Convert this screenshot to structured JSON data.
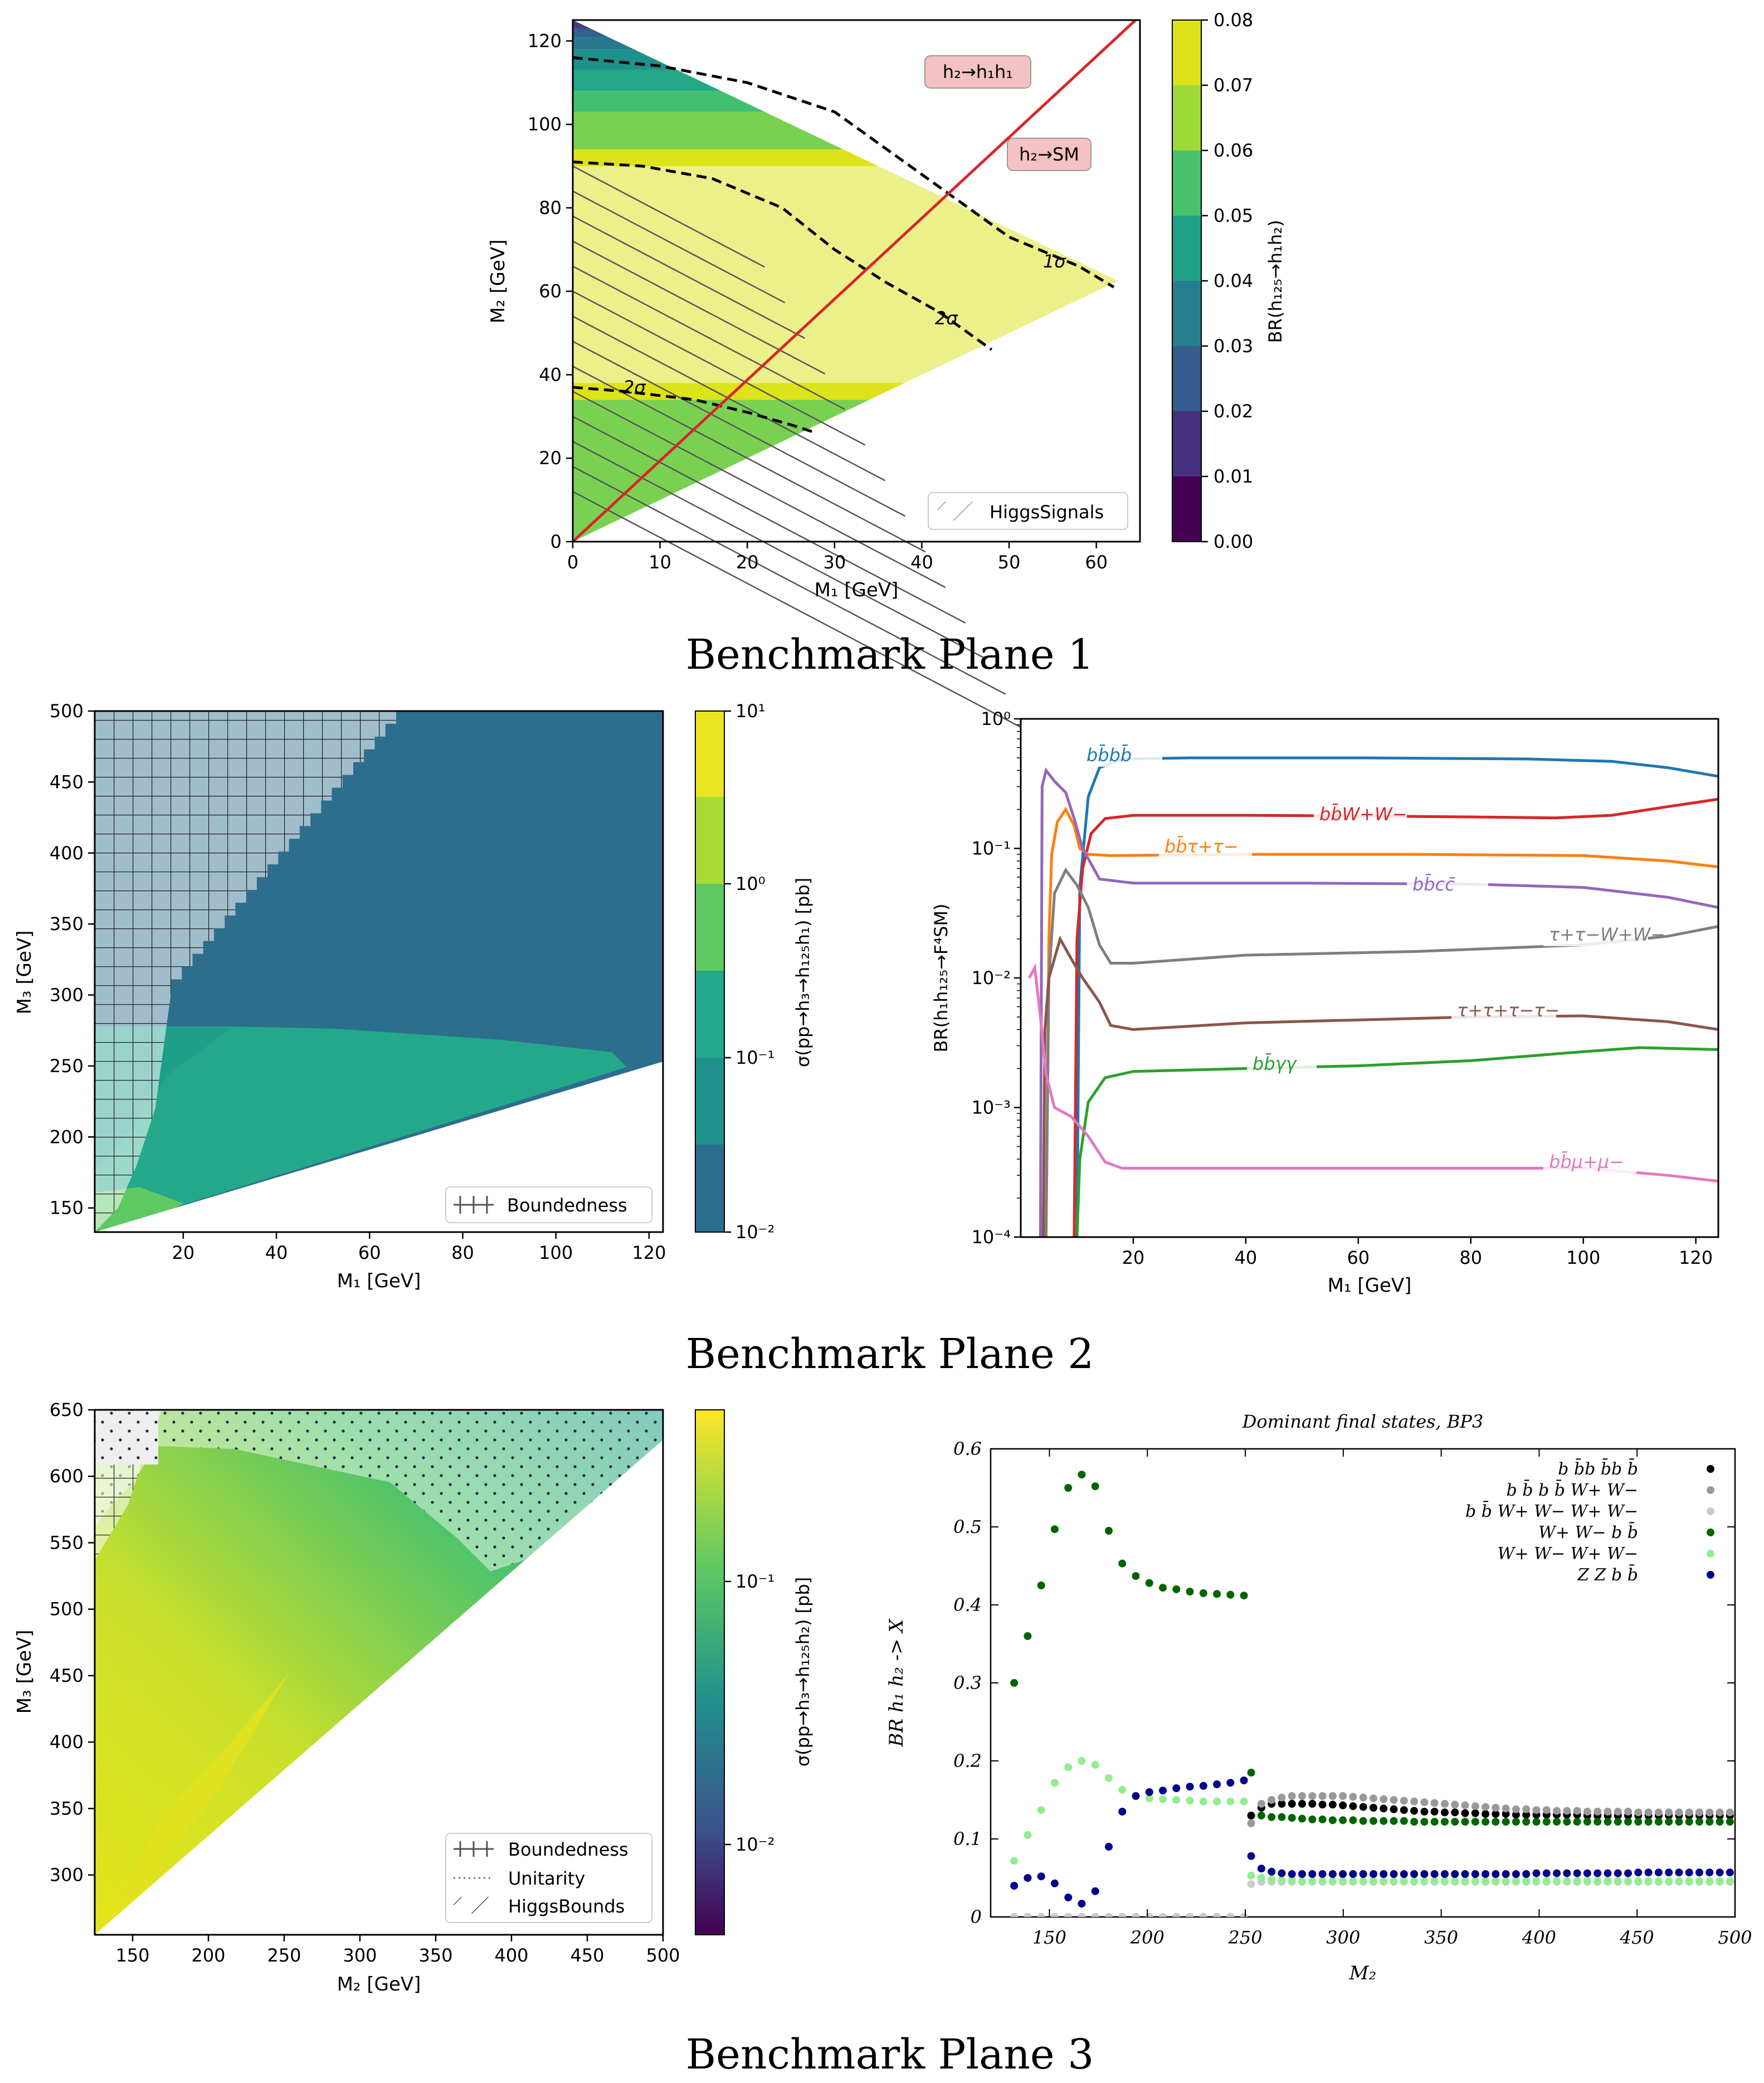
{
  "caption_bp1": "Benchmark Plane 1",
  "caption_bp2": "Benchmark Plane 2",
  "caption_bp3": "Benchmark Plane 3",
  "chart_data": [
    {
      "id": "bp1",
      "type": "heatmap",
      "title": "",
      "xlabel": "M1 [GeV]",
      "ylabel": "M2 [GeV]",
      "xlim": [
        0,
        65
      ],
      "ylim": [
        0,
        125
      ],
      "xticks": [
        0,
        10,
        20,
        30,
        40,
        50,
        60
      ],
      "yticks": [
        0,
        20,
        40,
        60,
        80,
        100,
        120
      ],
      "colorbar_label": "BR(h125 → h1 h2)",
      "colorbar_ticks": [
        "0.00",
        "0.01",
        "0.02",
        "0.03",
        "0.04",
        "0.05",
        "0.06",
        "0.07",
        "0.08"
      ],
      "contour_labels": [
        "1σ",
        "2σ",
        "2σ"
      ],
      "annotations": [
        "h2→h1h1",
        "h2→SM"
      ],
      "legend": [
        "HiggsSignals"
      ]
    },
    {
      "id": "bp2a",
      "type": "heatmap",
      "xlabel": "M1 [GeV]",
      "ylabel": "M3 [GeV]",
      "xlim": [
        1,
        123
      ],
      "ylim": [
        133,
        500
      ],
      "xticks": [
        20,
        40,
        60,
        80,
        100,
        120
      ],
      "yticks": [
        150,
        200,
        250,
        300,
        350,
        400,
        450,
        500
      ],
      "colorbar_label": "σ(pp → h3 → h125 h1) [pb]",
      "colorbar_ticks": [
        "10^1",
        "10^0",
        "10^-1",
        "10^-2"
      ],
      "legend": [
        "Boundedness"
      ]
    },
    {
      "id": "bp2b",
      "type": "line",
      "xlabel": "M1 [GeV]",
      "ylabel": "BR(h1 h125 → F4SM)",
      "xlim": [
        0,
        124
      ],
      "ylim": [
        0.0001,
        1
      ],
      "yscale": "log",
      "xticks": [
        20,
        40,
        60,
        80,
        100,
        120
      ],
      "yticks": [
        "10^0",
        "10^-1",
        "10^-2",
        "10^-3",
        "10^-4"
      ],
      "series": [
        {
          "name": "bb̄bb̄",
          "color": "#1f77b4",
          "points": [
            [
              10,
              0.0001
            ],
            [
              10.5,
              0.05
            ],
            [
              12,
              0.25
            ],
            [
              14,
              0.42
            ],
            [
              18,
              0.49
            ],
            [
              30,
              0.5
            ],
            [
              60,
              0.5
            ],
            [
              90,
              0.49
            ],
            [
              105,
              0.47
            ],
            [
              115,
              0.42
            ],
            [
              124,
              0.36
            ]
          ]
        },
        {
          "name": "bb̄W+W−",
          "color": "#d62728",
          "points": [
            [
              9.5,
              0.0001
            ],
            [
              10,
              0.02
            ],
            [
              11,
              0.07
            ],
            [
              12.5,
              0.13
            ],
            [
              15,
              0.17
            ],
            [
              20,
              0.18
            ],
            [
              40,
              0.18
            ],
            [
              60,
              0.178
            ],
            [
              80,
              0.175
            ],
            [
              95,
              0.172
            ],
            [
              105,
              0.18
            ],
            [
              115,
              0.21
            ],
            [
              124,
              0.24
            ]
          ]
        },
        {
          "name": "bb̄τ+τ−",
          "color": "#ff7f0e",
          "points": [
            [
              4.5,
              0.0001
            ],
            [
              5,
              0.02
            ],
            [
              5.5,
              0.09
            ],
            [
              6.5,
              0.16
            ],
            [
              8,
              0.2
            ],
            [
              9.5,
              0.15
            ],
            [
              10.5,
              0.1
            ],
            [
              12,
              0.09
            ],
            [
              16,
              0.088
            ],
            [
              40,
              0.09
            ],
            [
              70,
              0.09
            ],
            [
              100,
              0.088
            ],
            [
              115,
              0.08
            ],
            [
              124,
              0.072
            ]
          ]
        },
        {
          "name": "bb̄cc̄",
          "color": "#9467bd",
          "points": [
            [
              3.5,
              0.0001
            ],
            [
              3.8,
              0.3
            ],
            [
              4.5,
              0.4
            ],
            [
              6,
              0.33
            ],
            [
              8,
              0.27
            ],
            [
              9.5,
              0.17
            ],
            [
              11,
              0.1
            ],
            [
              14,
              0.058
            ],
            [
              20,
              0.054
            ],
            [
              50,
              0.054
            ],
            [
              80,
              0.053
            ],
            [
              100,
              0.05
            ],
            [
              115,
              0.042
            ],
            [
              124,
              0.035
            ]
          ]
        },
        {
          "name": "τ+τ−W+W−",
          "color": "#7f7f7f",
          "points": [
            [
              4.5,
              0.0001
            ],
            [
              5,
              0.01
            ],
            [
              6,
              0.045
            ],
            [
              8,
              0.068
            ],
            [
              10,
              0.052
            ],
            [
              12,
              0.035
            ],
            [
              14,
              0.018
            ],
            [
              16,
              0.013
            ],
            [
              20,
              0.013
            ],
            [
              40,
              0.015
            ],
            [
              70,
              0.016
            ],
            [
              100,
              0.018
            ],
            [
              115,
              0.021
            ],
            [
              124,
              0.025
            ]
          ]
        },
        {
          "name": "τ+τ+τ−τ−",
          "color": "#8c564b",
          "points": [
            [
              4,
              0.0001
            ],
            [
              4.3,
              0.004
            ],
            [
              5,
              0.01
            ],
            [
              7,
              0.02
            ],
            [
              9,
              0.014
            ],
            [
              11,
              0.01
            ],
            [
              14,
              0.0065
            ],
            [
              16,
              0.0043
            ],
            [
              20,
              0.004
            ],
            [
              40,
              0.0045
            ],
            [
              80,
              0.005
            ],
            [
              100,
              0.0051
            ],
            [
              115,
              0.0046
            ],
            [
              124,
              0.004
            ]
          ]
        },
        {
          "name": "bb̄γγ",
          "color": "#2ca02c",
          "points": [
            [
              10,
              0.0001
            ],
            [
              10.5,
              0.0004
            ],
            [
              12,
              0.0011
            ],
            [
              15,
              0.0017
            ],
            [
              20,
              0.0019
            ],
            [
              40,
              0.002
            ],
            [
              60,
              0.0021
            ],
            [
              80,
              0.0023
            ],
            [
              100,
              0.0027
            ],
            [
              110,
              0.0029
            ],
            [
              124,
              0.0028
            ]
          ]
        },
        {
          "name": "bb̄μ+μ−",
          "color": "#e377c2",
          "points": [
            [
              1.5,
              0.01
            ],
            [
              2.5,
              0.012
            ],
            [
              3.5,
              0.005
            ],
            [
              4.5,
              0.0018
            ],
            [
              6,
              0.001
            ],
            [
              9,
              0.00085
            ],
            [
              12,
              0.0006
            ],
            [
              15,
              0.00038
            ],
            [
              18,
              0.00034
            ],
            [
              40,
              0.00034
            ],
            [
              70,
              0.00034
            ],
            [
              100,
              0.00034
            ],
            [
              115,
              0.0003
            ],
            [
              124,
              0.00027
            ]
          ]
        }
      ]
    },
    {
      "id": "bp3a",
      "type": "heatmap",
      "xlabel": "M2 [GeV]",
      "ylabel": "M3 [GeV]",
      "xlim": [
        125,
        500
      ],
      "ylim": [
        255,
        650
      ],
      "xticks": [
        150,
        200,
        250,
        300,
        350,
        400,
        450,
        500
      ],
      "yticks": [
        300,
        350,
        400,
        450,
        500,
        550,
        600,
        650
      ],
      "colorbar_label": "σ(pp → h3 → h125 h2) [pb]",
      "colorbar_ticks": [
        "10^-1",
        "10^-2"
      ],
      "legend": [
        "Boundedness",
        "Unitarity",
        "HiggsBounds"
      ]
    },
    {
      "id": "bp3b",
      "type": "scatter",
      "title": "Dominant final states, BP3",
      "xlabel": "M2",
      "ylabel": "BR h1 h2 -> X",
      "xlim": [
        120,
        500
      ],
      "ylim": [
        0,
        0.6
      ],
      "xticks": [
        150,
        200,
        250,
        300,
        350,
        400,
        450,
        500
      ],
      "yticks": [
        "0",
        "0.1",
        "0.2",
        "0.3",
        "0.4",
        "0.5",
        "0.6"
      ],
      "series": [
        {
          "name": "b b̄b b̄b b̄",
          "color": "#000000",
          "values": [
            0,
            0,
            0,
            0,
            0,
            0,
            0,
            0,
            0,
            0,
            0,
            0,
            0,
            0,
            0,
            0,
            0,
            0,
            0.13,
            0.14,
            0.145,
            0.145,
            0.145,
            0.145,
            0.145,
            0.144,
            0.144,
            0.143,
            0.142,
            0.141,
            0.14,
            0.139,
            0.138,
            0.137,
            0.136,
            0.135,
            0.135,
            0.134,
            0.134,
            0.133,
            0.133,
            0.132,
            0.132,
            0.132,
            0.131,
            0.131,
            0.131,
            0.131,
            0.131,
            0.131,
            0.131,
            0.13,
            0.13,
            0.13,
            0.13,
            0.13,
            0.13,
            0.13,
            0.13,
            0.13,
            0.13,
            0.13,
            0.13,
            0.13,
            0.13,
            0.13
          ]
        },
        {
          "name": "b b̄ b b̄ W+ W−",
          "color": "#999999",
          "values": [
            0,
            0,
            0,
            0,
            0,
            0,
            0,
            0,
            0,
            0,
            0,
            0,
            0,
            0,
            0,
            0,
            0,
            0,
            0.12,
            0.145,
            0.15,
            0.153,
            0.155,
            0.155,
            0.155,
            0.155,
            0.155,
            0.155,
            0.154,
            0.153,
            0.152,
            0.151,
            0.15,
            0.149,
            0.148,
            0.147,
            0.146,
            0.145,
            0.144,
            0.143,
            0.142,
            0.141,
            0.14,
            0.139,
            0.138,
            0.138,
            0.137,
            0.137,
            0.136,
            0.136,
            0.136,
            0.135,
            0.135,
            0.135,
            0.135,
            0.135,
            0.134,
            0.134,
            0.134,
            0.134,
            0.134,
            0.134,
            0.134,
            0.134,
            0.134,
            0.134
          ]
        },
        {
          "name": "b b̄ W+ W− W+ W−",
          "color": "#cccccc",
          "values": [
            0,
            0,
            0,
            0,
            0,
            0,
            0,
            0,
            0,
            0,
            0,
            0,
            0,
            0,
            0,
            0,
            0,
            0,
            0.042,
            0.045,
            0.045,
            0.045,
            0.045,
            0.045,
            0.045,
            0.045,
            0.045,
            0.045,
            0.045,
            0.045,
            0.045,
            0.045,
            0.045,
            0.045,
            0.045,
            0.045,
            0.045,
            0.045,
            0.045,
            0.045,
            0.045,
            0.045,
            0.045,
            0.045,
            0.045,
            0.045,
            0.045,
            0.045,
            0.045,
            0.045,
            0.045,
            0.045,
            0.045,
            0.045,
            0.045,
            0.045,
            0.045,
            0.045,
            0.045,
            0.045,
            0.045,
            0.045,
            0.045,
            0.045,
            0.045,
            0.045
          ]
        },
        {
          "name": "W+ W− b b̄",
          "color": "#006400",
          "values": [
            0.3,
            0.36,
            0.425,
            0.497,
            0.55,
            0.567,
            0.552,
            0.495,
            0.453,
            0.437,
            0.428,
            0.422,
            0.42,
            0.417,
            0.415,
            0.414,
            0.413,
            0.412,
            0.185,
            0.13,
            0.128,
            0.128,
            0.127,
            0.126,
            0.125,
            0.125,
            0.124,
            0.124,
            0.124,
            0.123,
            0.123,
            0.123,
            0.123,
            0.123,
            0.122,
            0.122,
            0.122,
            0.122,
            0.122,
            0.122,
            0.122,
            0.122,
            0.122,
            0.122,
            0.122,
            0.122,
            0.122,
            0.122,
            0.122,
            0.122,
            0.122,
            0.122,
            0.122,
            0.122,
            0.122,
            0.122,
            0.122,
            0.122,
            0.122,
            0.122,
            0.122,
            0.122,
            0.122,
            0.122,
            0.122,
            0.122
          ]
        },
        {
          "name": "W+ W− W+ W−",
          "color": "#90ee90",
          "values": [
            0.072,
            0.105,
            0.137,
            0.172,
            0.192,
            0.2,
            0.195,
            0.178,
            0.163,
            0.155,
            0.152,
            0.151,
            0.15,
            0.149,
            0.148,
            0.148,
            0.148,
            0.148,
            0.053,
            0.05,
            0.048,
            0.047,
            0.047,
            0.046,
            0.046,
            0.046,
            0.046,
            0.046,
            0.046,
            0.046,
            0.046,
            0.046,
            0.046,
            0.046,
            0.046,
            0.046,
            0.046,
            0.046,
            0.046,
            0.046,
            0.046,
            0.046,
            0.046,
            0.046,
            0.046,
            0.046,
            0.046,
            0.046,
            0.046,
            0.046,
            0.046,
            0.046,
            0.046,
            0.046,
            0.046,
            0.046,
            0.046,
            0.046,
            0.046,
            0.046,
            0.046,
            0.046,
            0.046,
            0.046,
            0.046,
            0.046
          ]
        },
        {
          "name": "Z Z b b̄",
          "color": "#00008b",
          "values": [
            0.04,
            0.05,
            0.052,
            0.043,
            0.025,
            0.017,
            0.033,
            0.09,
            0.135,
            0.155,
            0.16,
            0.162,
            0.165,
            0.167,
            0.168,
            0.17,
            0.172,
            0.175,
            0.078,
            0.062,
            0.058,
            0.056,
            0.055,
            0.055,
            0.055,
            0.055,
            0.055,
            0.055,
            0.055,
            0.055,
            0.055,
            0.055,
            0.055,
            0.055,
            0.055,
            0.055,
            0.055,
            0.055,
            0.055,
            0.055,
            0.055,
            0.055,
            0.055,
            0.055,
            0.055,
            0.055,
            0.056,
            0.056,
            0.056,
            0.056,
            0.056,
            0.056,
            0.056,
            0.056,
            0.056,
            0.056,
            0.057,
            0.057,
            0.057,
            0.057,
            0.057,
            0.057,
            0.057,
            0.057,
            0.057,
            0.057
          ]
        }
      ]
    }
  ]
}
